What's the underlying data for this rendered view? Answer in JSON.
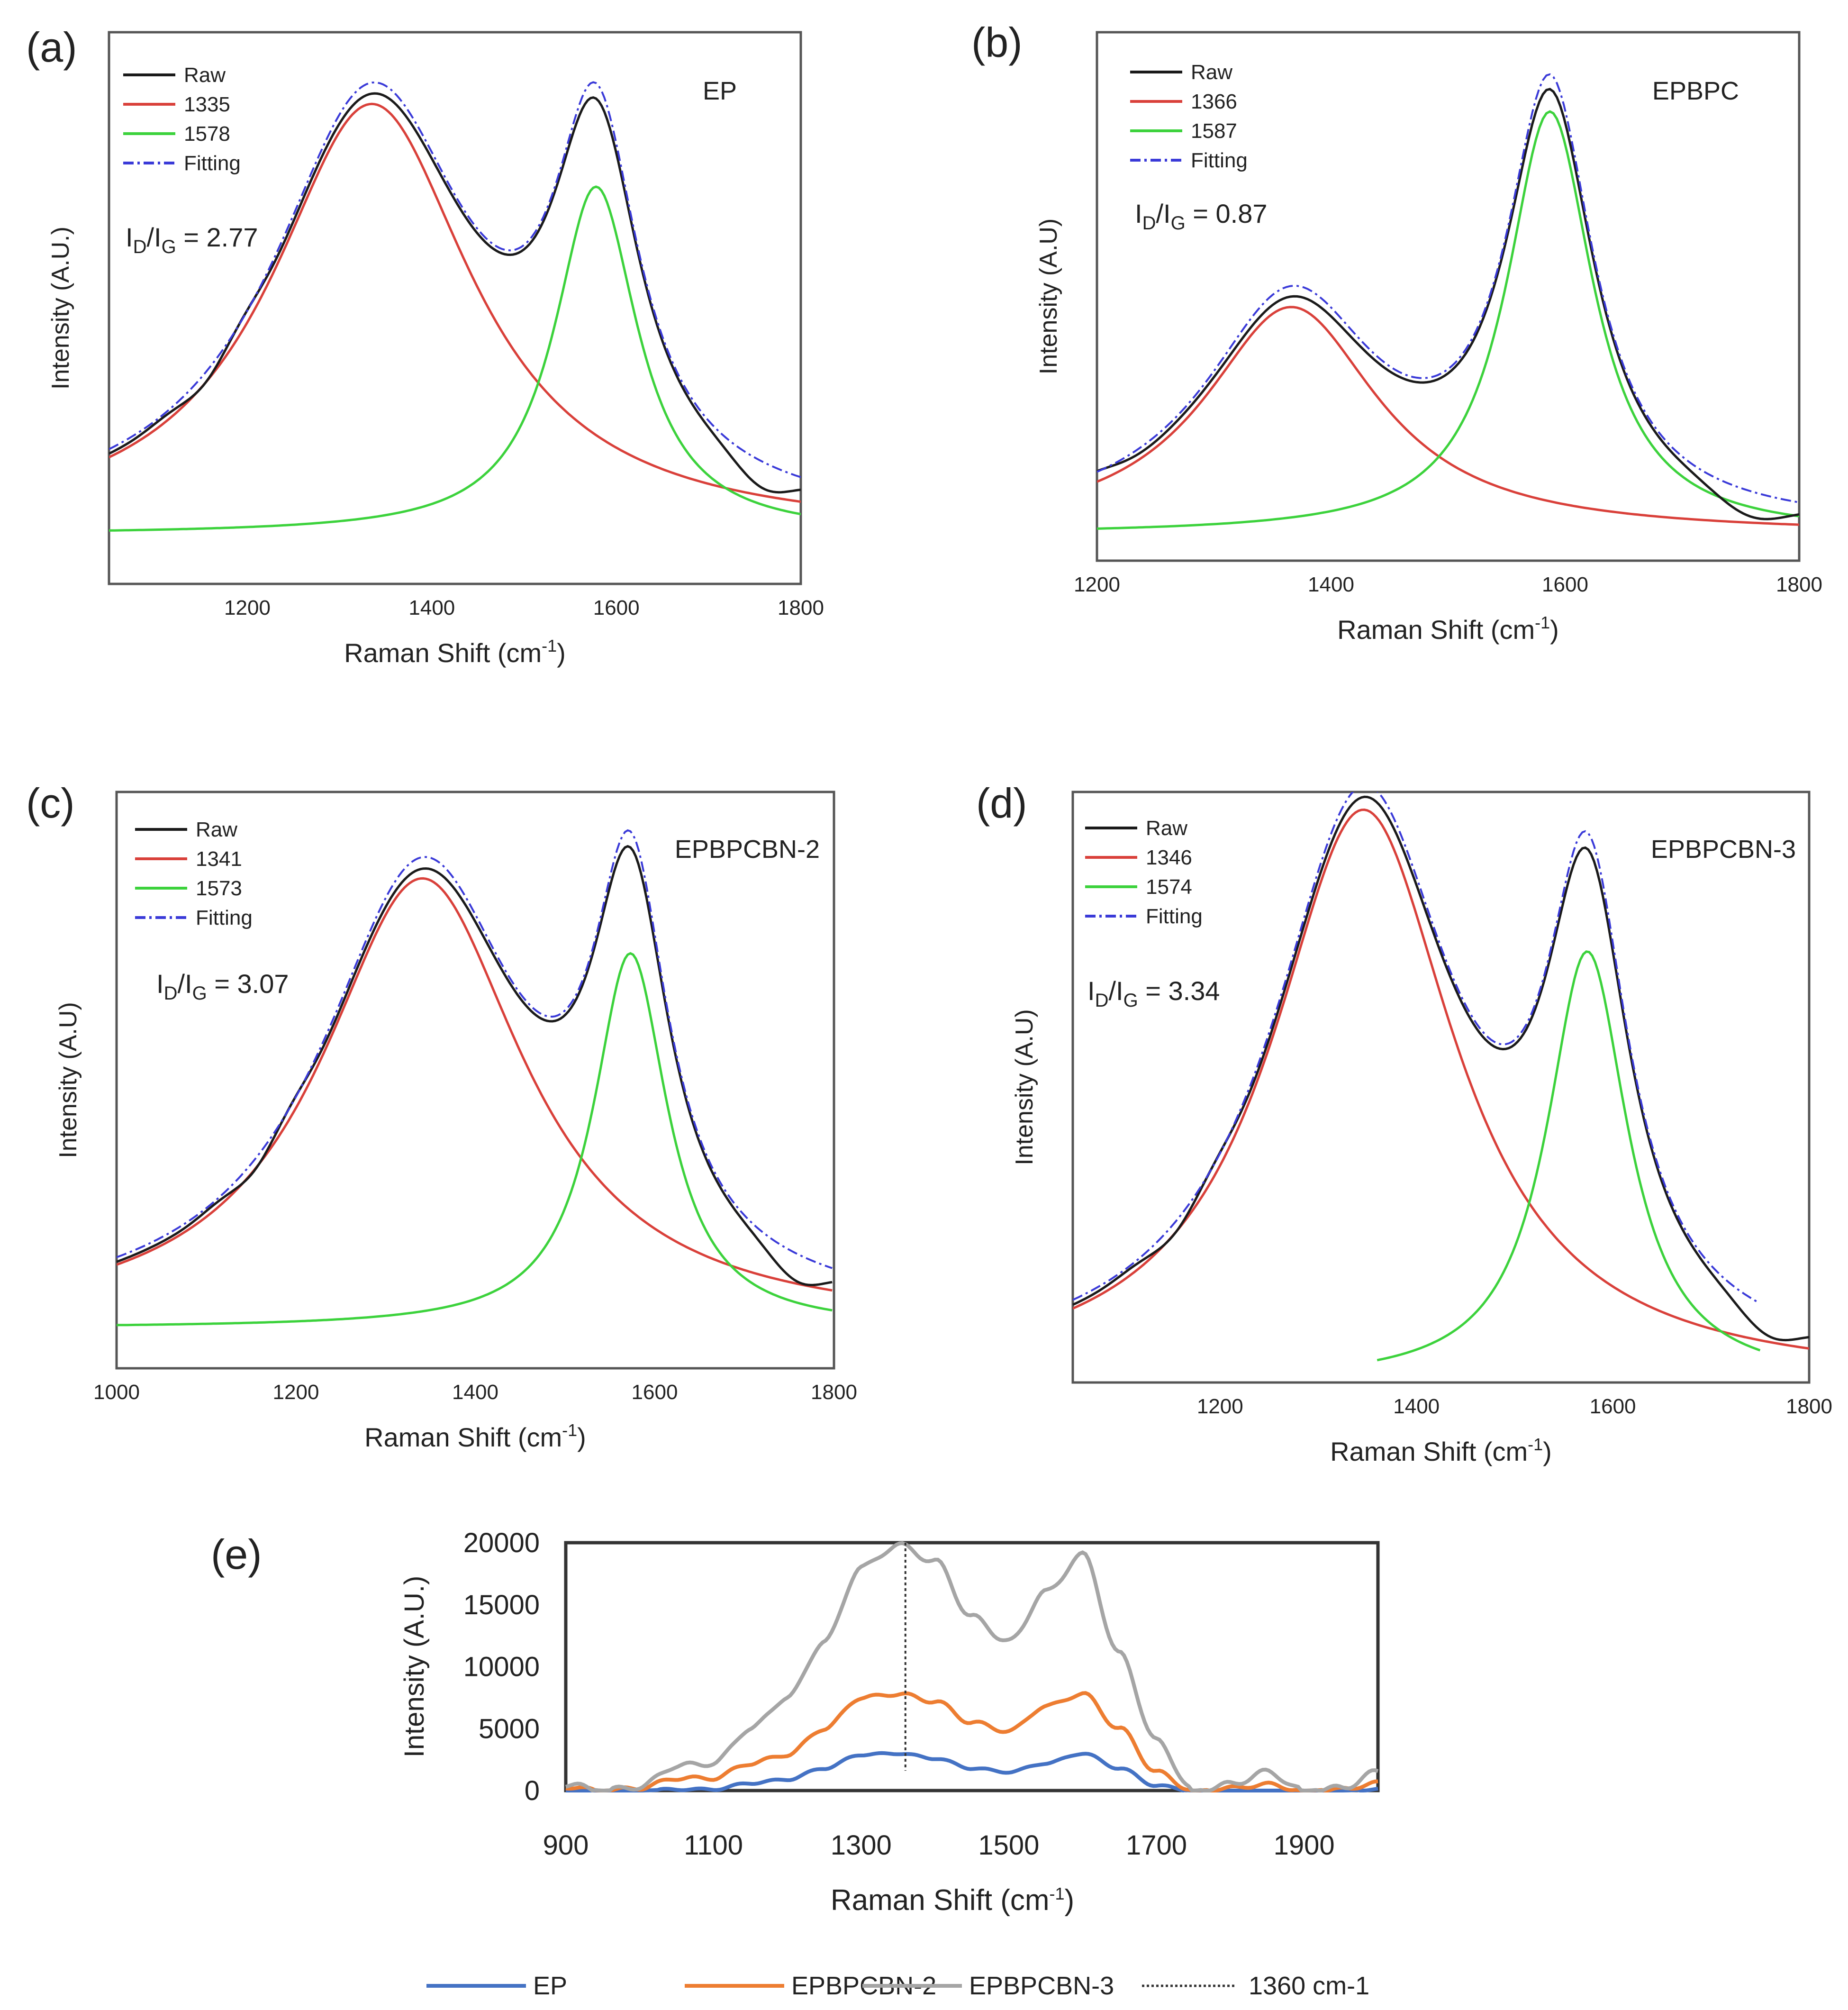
{
  "chart_data": [
    {
      "panel": "(a)",
      "type": "line",
      "sample": "EP",
      "xlabel": [
        "Raman Shift (cm",
        "-1",
        ")"
      ],
      "ylabel": "Intensity (A.U.)",
      "xlim": [
        1050,
        1800
      ],
      "ylim": [
        0,
        1
      ],
      "xticks": [
        "1200",
        "1400",
        "1600",
        "1800"
      ],
      "xtick_values": [
        1200,
        1400,
        1600,
        1800
      ],
      "legend": [
        "Raw",
        "1335",
        "1578",
        "Fitting"
      ],
      "ratio_symbol": [
        "I",
        "D",
        "/I",
        "G",
        " = "
      ],
      "ratio": "2.77",
      "baseline": 0.09,
      "D_peak": {
        "center": 1335,
        "height": 0.78,
        "hwhm": 133
      },
      "G_peak": {
        "center": 1578,
        "height": 0.63,
        "hwhm": 55
      }
    },
    {
      "panel": "(b)",
      "type": "line",
      "sample": "EPBPC",
      "xlabel": [
        "Raman Shift (cm",
        "-1",
        ")"
      ],
      "ylabel": "Intensity (A.U)",
      "xlim": [
        1200,
        1800
      ],
      "ylim": [
        0,
        1
      ],
      "xticks": [
        "1200",
        "1400",
        "1600",
        "1800"
      ],
      "xtick_values": [
        1200,
        1400,
        1600,
        1800
      ],
      "legend": [
        "Raw",
        "1366",
        "1587",
        "Fitting"
      ],
      "ratio_symbol": [
        "I",
        "D",
        "/I",
        "G",
        " = "
      ],
      "ratio": "0.87",
      "baseline": 0.05,
      "D_peak": {
        "center": 1366,
        "height": 0.43,
        "hwhm": 91
      },
      "G_peak": {
        "center": 1587,
        "height": 0.8,
        "hwhm": 45
      }
    },
    {
      "panel": "(c)",
      "type": "line",
      "sample": "EPBPCBN-2",
      "xlabel": [
        "Raman Shift (cm",
        "-1",
        ")"
      ],
      "ylabel": "Intensity (A.U)",
      "xlim": [
        1000,
        1800
      ],
      "ylim": [
        0,
        1
      ],
      "xticks": [
        "1000",
        "1200",
        "1400",
        "1600",
        "1800"
      ],
      "xtick_values": [
        1000,
        1200,
        1400,
        1600,
        1800
      ],
      "legend": [
        "Raw",
        "1341",
        "1573",
        "Fitting"
      ],
      "ratio_symbol": [
        "I",
        "D",
        "/I",
        "G",
        " = "
      ],
      "ratio": "3.07",
      "baseline": 0.07,
      "D_peak": {
        "center": 1341,
        "height": 0.78,
        "hwhm": 138
      },
      "G_peak": {
        "center": 1573,
        "height": 0.65,
        "hwhm": 50
      }
    },
    {
      "panel": "(d)",
      "type": "line",
      "sample": "EPBPCBN-3",
      "xlabel": [
        "Raman Shift (cm",
        "-1",
        ")"
      ],
      "ylabel": "Intensity (A.U)",
      "xlim": [
        1050,
        1800
      ],
      "ylim": [
        0,
        1
      ],
      "xticks": [
        "1200",
        "1400",
        "1600",
        "1800"
      ],
      "xtick_values": [
        1200,
        1400,
        1600,
        1800
      ],
      "legend": [
        "Raw",
        "1346",
        "1574",
        "Fitting"
      ],
      "ratio_symbol": [
        "I",
        "D",
        "/I",
        "G",
        " = "
      ],
      "ratio": "3.34",
      "baseline": 0.0,
      "D_peak": {
        "center": 1346,
        "height": 0.97,
        "hwhm": 114
      },
      "G_peak": {
        "center": 1574,
        "height": 0.73,
        "hwhm": 50
      }
    },
    {
      "panel": "(e)",
      "type": "line",
      "xlabel": [
        "Raman Shift (cm",
        "-1",
        ")"
      ],
      "ylabel": "Intensity (A.U.)",
      "xlim": [
        900,
        2000
      ],
      "ylim": [
        0,
        20000
      ],
      "xticks": [
        "900",
        "1100",
        "1300",
        "1500",
        "1700",
        "1900"
      ],
      "xtick_values": [
        900,
        1100,
        1300,
        1500,
        1700,
        1900
      ],
      "yticks": [
        "0",
        "5000",
        "10000",
        "15000",
        "20000"
      ],
      "ytick_values": [
        0,
        5000,
        10000,
        15000,
        20000
      ],
      "x": [
        900,
        950,
        1000,
        1050,
        1100,
        1150,
        1200,
        1250,
        1300,
        1350,
        1400,
        1450,
        1500,
        1550,
        1600,
        1650,
        1700,
        1750,
        1800,
        1850,
        1900,
        1950,
        2000
      ],
      "series": [
        {
          "name": "EP",
          "color": "#4472c4",
          "values": [
            0,
            0,
            0,
            100,
            100,
            600,
            900,
            1800,
            2900,
            3000,
            2600,
            1800,
            1500,
            2200,
            3000,
            1800,
            400,
            0,
            0,
            0,
            0,
            0,
            100
          ]
        },
        {
          "name": "EPBPCBN-2",
          "color": "#ed7d31",
          "values": [
            300,
            0,
            200,
            1000,
            1000,
            2200,
            2900,
            5000,
            7500,
            7800,
            7200,
            5500,
            4800,
            6800,
            7800,
            5000,
            1500,
            0,
            200,
            500,
            0,
            100,
            600
          ]
        },
        {
          "name": "EPBPCBN-3",
          "color": "#a5a5a5",
          "values": [
            500,
            0,
            300,
            2000,
            2200,
            5000,
            7500,
            12000,
            18000,
            19800,
            18500,
            14000,
            12000,
            16000,
            19000,
            11000,
            4000,
            0,
            500,
            1500,
            0,
            200,
            1500
          ]
        }
      ],
      "reference_line": {
        "name": "1360 cm-1",
        "x": 1360
      },
      "legend_position": "bottom"
    }
  ],
  "colors": {
    "raw": "#1a1a1a",
    "d_band": "#d9403a",
    "g_band": "#3cd23c",
    "fitting": "#3a3ad8"
  }
}
